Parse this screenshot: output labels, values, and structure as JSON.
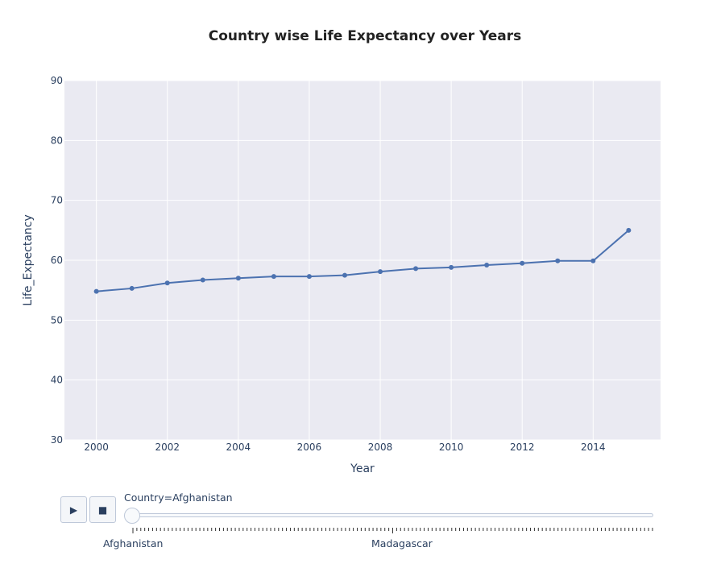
{
  "chart_data": {
    "type": "line",
    "title": "Country wise Life Expectancy over Years",
    "xlabel": "Year",
    "ylabel": "Life_Expectancy",
    "x": [
      2000,
      2001,
      2002,
      2003,
      2004,
      2005,
      2006,
      2007,
      2008,
      2009,
      2010,
      2011,
      2012,
      2013,
      2014,
      2015
    ],
    "values": [
      54.8,
      55.3,
      56.2,
      56.7,
      57.0,
      57.3,
      57.3,
      57.5,
      58.1,
      58.6,
      58.8,
      59.2,
      59.5,
      59.9,
      59.9,
      65.0
    ],
    "xlim": [
      1999.1,
      2015.9
    ],
    "ylim": [
      30,
      90
    ],
    "x_ticks": [
      "2000",
      "2002",
      "2004",
      "2006",
      "2008",
      "2010",
      "2012",
      "2014"
    ],
    "y_ticks": [
      "30",
      "40",
      "50",
      "60",
      "70",
      "80",
      "90"
    ],
    "grid": true,
    "line_color": "#4c72b0",
    "plot_bg": "#eaeaf2"
  },
  "slider": {
    "current_label": "Country=Afghanistan",
    "tick_labels": [
      "Afghanistan",
      "Madagascar"
    ],
    "play_icon": "▶",
    "stop_icon": "■"
  }
}
